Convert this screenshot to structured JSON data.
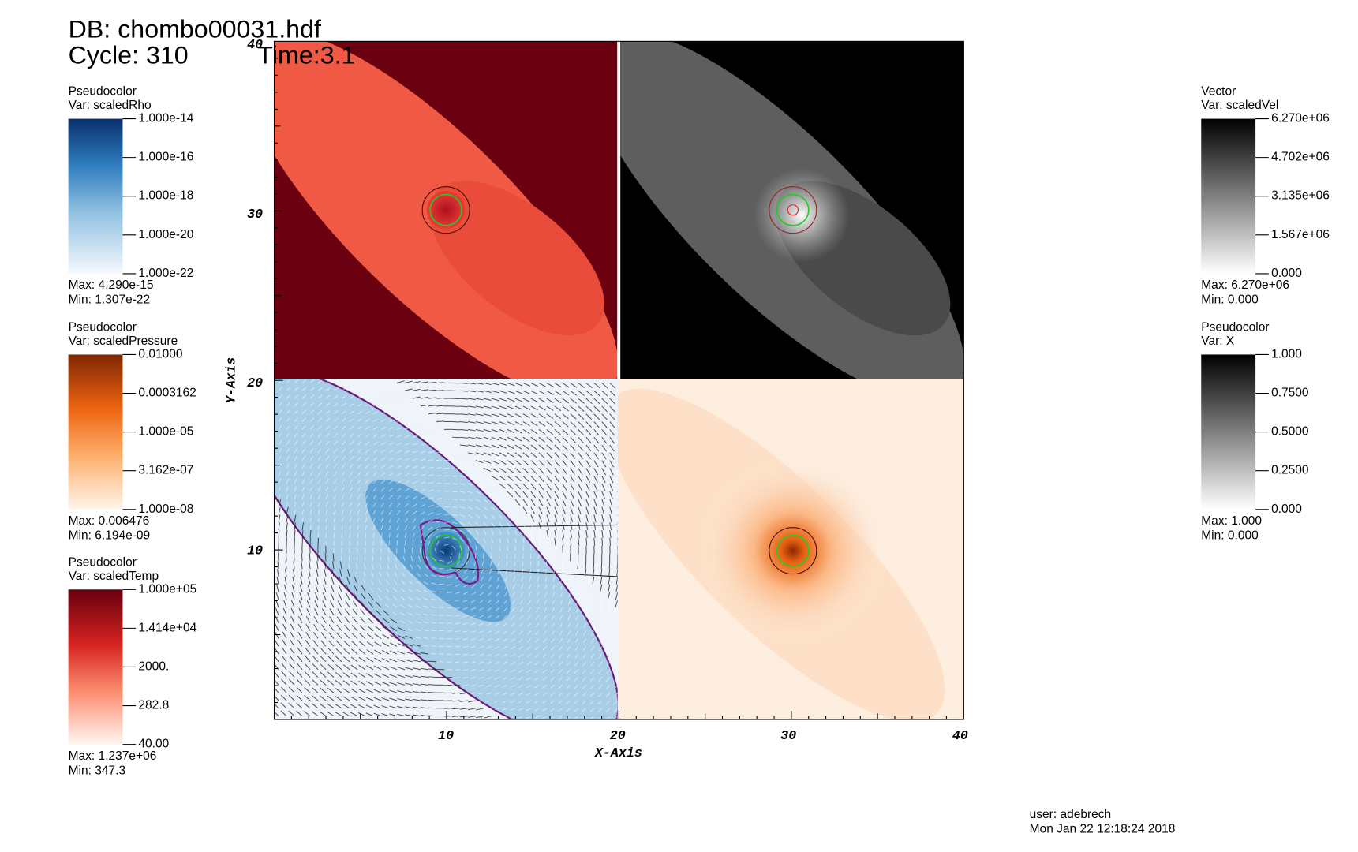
{
  "header": {
    "database": "DB: chombo00031.hdf",
    "cycle": "Cycle: 310",
    "time": "Time:3.1"
  },
  "legends_left": [
    {
      "plot": "Pseudocolor",
      "variable": "Var: scaledRho",
      "ticks": [
        "1.000e-14",
        "1.000e-16",
        "1.000e-18",
        "1.000e-20",
        "1.000e-22"
      ],
      "max": "Max:  4.290e-15",
      "min": "Min:  1.307e-22"
    },
    {
      "plot": "Pseudocolor",
      "variable": "Var: scaledPressure",
      "ticks": [
        "0.01000",
        "0.0003162",
        "1.000e-05",
        "3.162e-07",
        "1.000e-08"
      ],
      "max": "Max:  0.006476",
      "min": "Min:  6.194e-09"
    },
    {
      "plot": "Pseudocolor",
      "variable": "Var: scaledTemp",
      "ticks": [
        "1.000e+05",
        "1.414e+04",
        "2000.",
        "282.8",
        "40.00"
      ],
      "max": "Max:  1.237e+06",
      "min": "Min:  347.3"
    }
  ],
  "legends_right": [
    {
      "plot": "Vector",
      "variable": "Var: scaledVel",
      "ticks": [
        "6.270e+06",
        "4.702e+06",
        "3.135e+06",
        "1.567e+06",
        "0.000"
      ],
      "max": "Max:  6.270e+06",
      "min": "Min:  0.000"
    },
    {
      "plot": "Pseudocolor",
      "variable": "Var: X",
      "ticks": [
        "1.000",
        "0.7500",
        "0.5000",
        "0.2500",
        "0.000"
      ],
      "max": "Max:  1.000",
      "min": "Min:  0.000"
    }
  ],
  "axes": {
    "x_label": "X-Axis",
    "y_label": "Y-Axis",
    "x_ticks": [
      "10",
      "20",
      "30",
      "40"
    ],
    "y_ticks": [
      "10",
      "20",
      "30",
      "40"
    ]
  },
  "footer": {
    "user": "user: adebrech",
    "timestamp": "Mon Jan 22 12:18:24 2018"
  }
}
